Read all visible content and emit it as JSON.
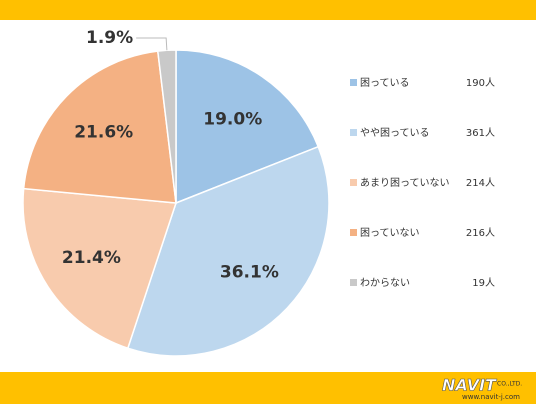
{
  "chart_data": {
    "type": "pie",
    "categories": [
      "困っている",
      "やや困っている",
      "あまり困っていない",
      "困っていない",
      "わからない"
    ],
    "values": [
      19.0,
      36.1,
      21.4,
      21.6,
      1.9
    ],
    "value_labels": [
      "19.0%",
      "36.1%",
      "21.4%",
      "21.6%",
      "1.9%"
    ],
    "count_labels": [
      "190人",
      "361人",
      "214人",
      "216人",
      "19人"
    ],
    "colors": [
      "#9dc3e6",
      "#bdd7ee",
      "#f8cbad",
      "#f4b183",
      "#c9c9c9"
    ],
    "legend": "right"
  },
  "footer": {
    "logo": "NAVIT",
    "company": "CO.,LTD.",
    "url": "www.navit-j.com"
  }
}
